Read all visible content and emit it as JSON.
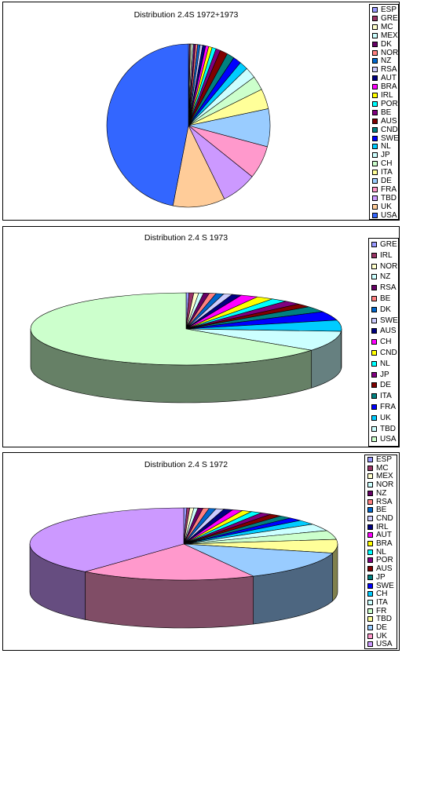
{
  "chart_data": [
    {
      "type": "pie",
      "title": "Distribution 2.4S 1972+1973",
      "legend": "right",
      "slices": [
        {
          "label": "ESP",
          "value": 0.2,
          "color": "#9999FF"
        },
        {
          "label": "GRE",
          "value": 0.2,
          "color": "#993366"
        },
        {
          "label": "MC",
          "value": 0.3,
          "color": "#FFFFCC"
        },
        {
          "label": "MEX",
          "value": 0.3,
          "color": "#CCFFFF"
        },
        {
          "label": "DK",
          "value": 0.4,
          "color": "#660066"
        },
        {
          "label": "NOR",
          "value": 0.4,
          "color": "#FF8080"
        },
        {
          "label": "NZ",
          "value": 0.5,
          "color": "#0066CC"
        },
        {
          "label": "RSA",
          "value": 0.5,
          "color": "#CCCCFF"
        },
        {
          "label": "AUT",
          "value": 0.6,
          "color": "#000080"
        },
        {
          "label": "BRA",
          "value": 0.6,
          "color": "#FF00FF"
        },
        {
          "label": "IRL",
          "value": 0.7,
          "color": "#FFFF00"
        },
        {
          "label": "POR",
          "value": 0.8,
          "color": "#00FFFF"
        },
        {
          "label": "BE",
          "value": 0.9,
          "color": "#800080"
        },
        {
          "label": "AUS",
          "value": 1.5,
          "color": "#800000"
        },
        {
          "label": "CND",
          "value": 1.5,
          "color": "#008080"
        },
        {
          "label": "SWE",
          "value": 1.6,
          "color": "#0000FF"
        },
        {
          "label": "NL",
          "value": 1.7,
          "color": "#00CCFF"
        },
        {
          "label": "JP",
          "value": 2.2,
          "color": "#CCFFFF"
        },
        {
          "label": "CH",
          "value": 2.8,
          "color": "#CCFFCC"
        },
        {
          "label": "ITA",
          "value": 4.0,
          "color": "#FFFF99"
        },
        {
          "label": "DE",
          "value": 7.5,
          "color": "#99CCFF"
        },
        {
          "label": "FRA",
          "value": 6.6,
          "color": "#FF99CC"
        },
        {
          "label": "TBD",
          "value": 7.0,
          "color": "#CC99FF"
        },
        {
          "label": "UK",
          "value": 10.3,
          "color": "#FFCC99"
        },
        {
          "label": "USA",
          "value": 47.0,
          "color": "#3366FF"
        }
      ]
    },
    {
      "type": "pie",
      "title": "Distribution 2.4 S 1973",
      "legend": "right",
      "slices": [
        {
          "label": "GRE",
          "value": 0.3,
          "color": "#9999FF"
        },
        {
          "label": "IRL",
          "value": 0.5,
          "color": "#993366"
        },
        {
          "label": "NOR",
          "value": 0.5,
          "color": "#FFFFCC"
        },
        {
          "label": "NZ",
          "value": 0.5,
          "color": "#CCFFFF"
        },
        {
          "label": "RSA",
          "value": 0.6,
          "color": "#660066"
        },
        {
          "label": "BE",
          "value": 0.7,
          "color": "#FF8080"
        },
        {
          "label": "DK",
          "value": 0.8,
          "color": "#0066CC"
        },
        {
          "label": "SWE",
          "value": 0.9,
          "color": "#CCCCFF"
        },
        {
          "label": "AUS",
          "value": 1.0,
          "color": "#000080"
        },
        {
          "label": "CH",
          "value": 1.8,
          "color": "#FF00FF"
        },
        {
          "label": "CND",
          "value": 1.8,
          "color": "#FFFF00"
        },
        {
          "label": "NL",
          "value": 1.7,
          "color": "#00FFFF"
        },
        {
          "label": "JP",
          "value": 1.8,
          "color": "#800080"
        },
        {
          "label": "DE",
          "value": 1.6,
          "color": "#800000"
        },
        {
          "label": "ITA",
          "value": 2.6,
          "color": "#008080"
        },
        {
          "label": "FRA",
          "value": 4.0,
          "color": "#0000FF"
        },
        {
          "label": "UK",
          "value": 5.0,
          "color": "#00CCFF"
        },
        {
          "label": "TBD",
          "value": 9.0,
          "color": "#CCFFFF"
        },
        {
          "label": "USA",
          "value": 65.0,
          "color": "#CCFFCC"
        }
      ]
    },
    {
      "type": "pie",
      "title": "Distribution 2.4 S 1972",
      "legend": "right",
      "slices": [
        {
          "label": "ESP",
          "value": 0.3,
          "color": "#9999FF"
        },
        {
          "label": "MC",
          "value": 0.3,
          "color": "#993366"
        },
        {
          "label": "MEX",
          "value": 0.4,
          "color": "#FFFFCC"
        },
        {
          "label": "NOR",
          "value": 0.4,
          "color": "#CCFFFF"
        },
        {
          "label": "NZ",
          "value": 0.5,
          "color": "#660066"
        },
        {
          "label": "RSA",
          "value": 0.6,
          "color": "#FF8080"
        },
        {
          "label": "BE",
          "value": 0.7,
          "color": "#0066CC"
        },
        {
          "label": "CND",
          "value": 0.8,
          "color": "#CCCCFF"
        },
        {
          "label": "IRL",
          "value": 0.9,
          "color": "#000080"
        },
        {
          "label": "AUT",
          "value": 1.0,
          "color": "#FF00FF"
        },
        {
          "label": "BRA",
          "value": 1.0,
          "color": "#FFFF00"
        },
        {
          "label": "NL",
          "value": 1.1,
          "color": "#00FFFF"
        },
        {
          "label": "POR",
          "value": 1.1,
          "color": "#800080"
        },
        {
          "label": "AUS",
          "value": 1.2,
          "color": "#800000"
        },
        {
          "label": "JP",
          "value": 1.3,
          "color": "#008080"
        },
        {
          "label": "SWE",
          "value": 1.4,
          "color": "#0000FF"
        },
        {
          "label": "CH",
          "value": 2.0,
          "color": "#00CCFF"
        },
        {
          "label": "ITA",
          "value": 3.0,
          "color": "#CCFFFF"
        },
        {
          "label": "FR",
          "value": 3.8,
          "color": "#CCFFCC"
        },
        {
          "label": "TBD",
          "value": 5.8,
          "color": "#FFFF99"
        },
        {
          "label": "DE",
          "value": 12.8,
          "color": "#99CCFF"
        },
        {
          "label": "UK",
          "value": 17.6,
          "color": "#FF99CC"
        },
        {
          "label": "USA",
          "value": 37.0,
          "color": "#CC99FF"
        }
      ]
    }
  ]
}
